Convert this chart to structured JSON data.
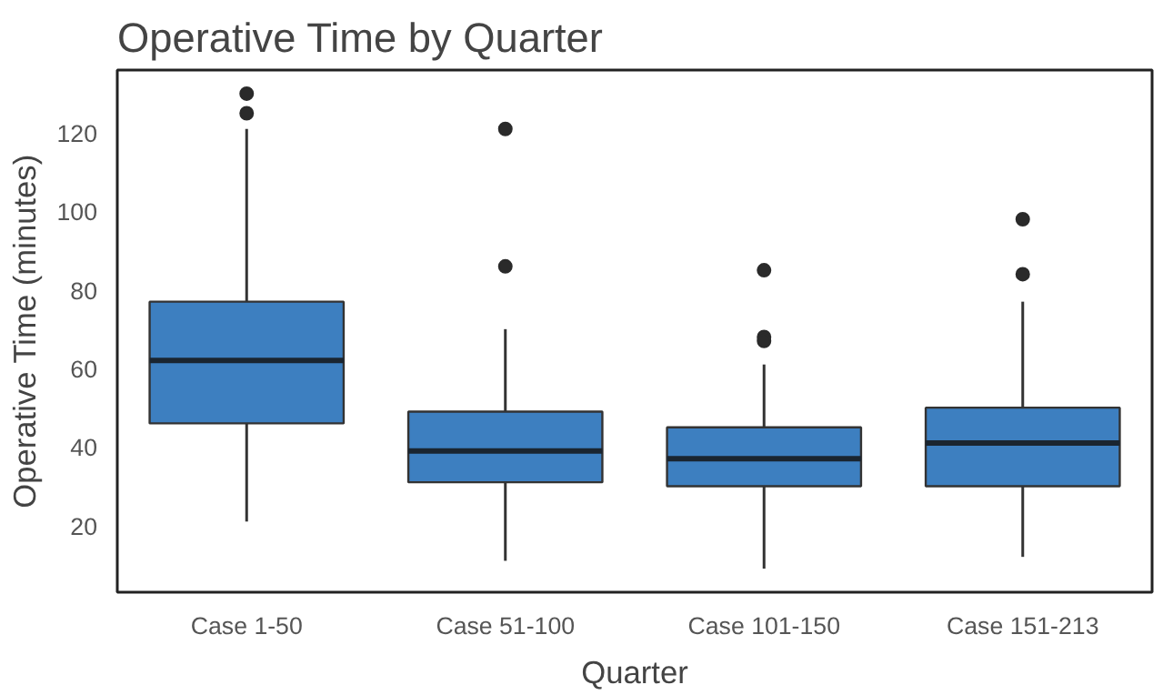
{
  "chart_data": {
    "type": "box",
    "title": "Operative Time by Quarter",
    "xlabel": "Quarter",
    "ylabel": "Operative Time (minutes)",
    "categories": [
      "Case 1-50",
      "Case 51-100",
      "Case 101-150",
      "Case 151-213"
    ],
    "color": "#3d7fc0",
    "boxes": [
      {
        "low": 21,
        "q1": 46,
        "median": 62,
        "q3": 77,
        "high": 121,
        "outliers": [
          130,
          125
        ]
      },
      {
        "low": 11,
        "q1": 31,
        "median": 39,
        "q3": 49,
        "high": 70,
        "outliers": [
          121,
          86
        ]
      },
      {
        "low": 9,
        "q1": 30,
        "median": 37,
        "q3": 45,
        "high": 61,
        "outliers": [
          85,
          68,
          67
        ]
      },
      {
        "low": 12,
        "q1": 30,
        "median": 41,
        "q3": 50,
        "high": 77,
        "outliers": [
          98,
          84
        ]
      }
    ],
    "ylim": [
      3,
      136
    ],
    "yticks": [
      20,
      40,
      60,
      80,
      100,
      120
    ],
    "grid": false
  }
}
